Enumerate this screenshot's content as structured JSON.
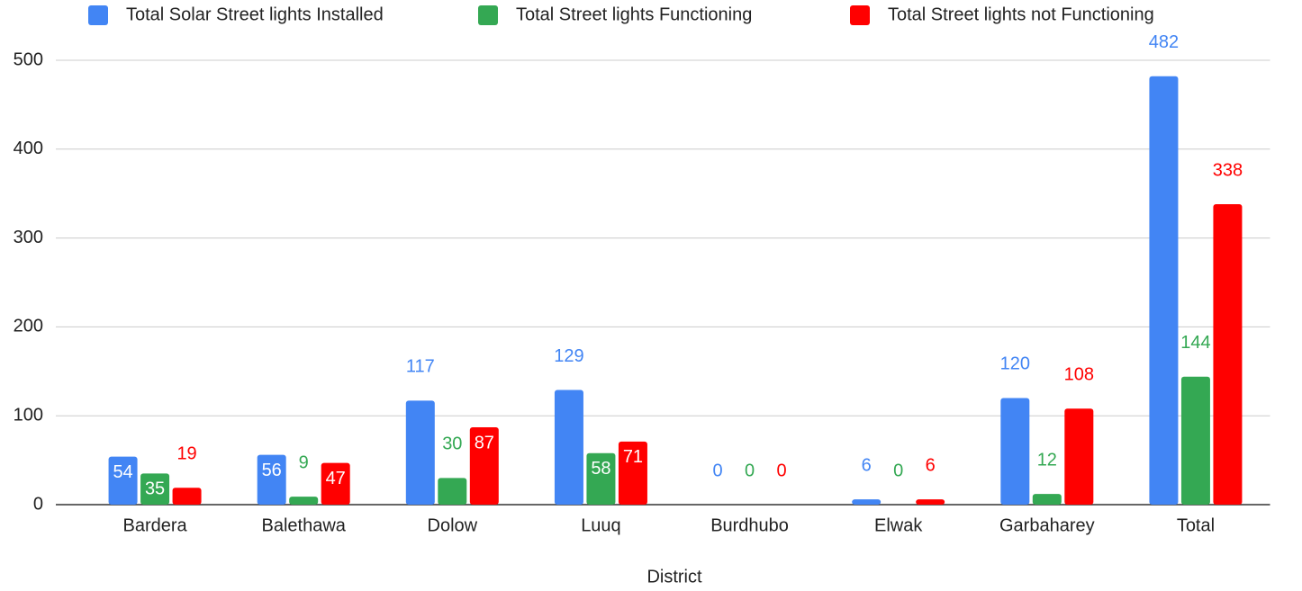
{
  "chart_data": {
    "type": "bar",
    "x_label": "District",
    "categories": [
      "Bardera",
      "Balethawa",
      "Dolow",
      "Luuq",
      "Burdhubo",
      "Elwak",
      "Garbaharey",
      "Total"
    ],
    "series": [
      {
        "name": "Total Solar Street lights Installed",
        "color": "#4285f4",
        "values": [
          54,
          56,
          117,
          129,
          0,
          6,
          120,
          482
        ]
      },
      {
        "name": "Total Street lights Functioning",
        "color": "#34a853",
        "values": [
          35,
          9,
          30,
          58,
          0,
          0,
          12,
          144
        ]
      },
      {
        "name": "Total Street lights not Functioning",
        "color": "#ff0000",
        "values": [
          19,
          47,
          87,
          71,
          0,
          6,
          108,
          338
        ]
      }
    ],
    "ylim": [
      0,
      500
    ],
    "yticks": [
      0,
      100,
      200,
      300,
      400,
      500
    ],
    "grid": true,
    "legend": "top"
  }
}
